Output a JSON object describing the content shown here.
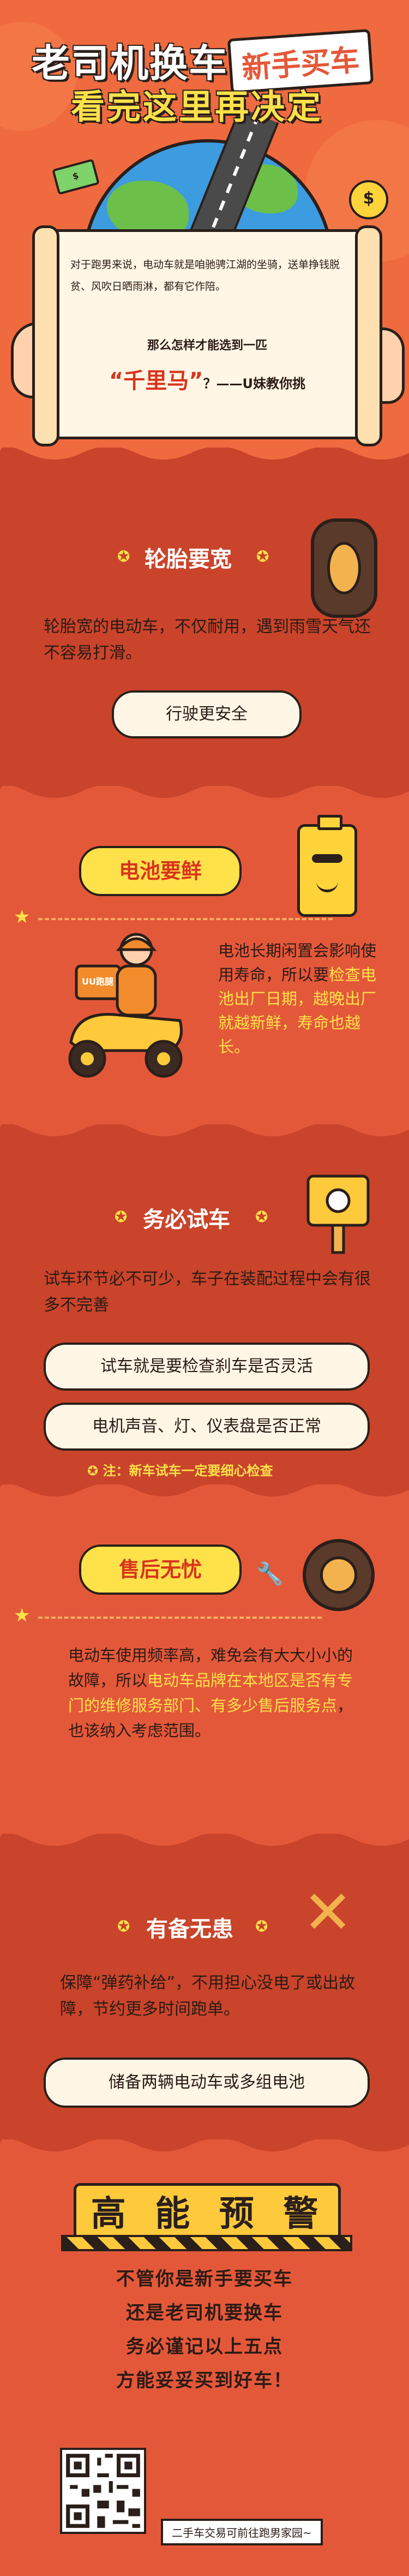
{
  "header": {
    "title_line1": "老司机换车",
    "title_badge": "新手买车",
    "title_line2": "看完这里再决定",
    "coin_symbol": "$",
    "bill_symbol": "$",
    "intro": "对于跑男来说，电动车就是咱驰骋江湖的坐骑，送单挣钱脱贫、风吹日晒雨淋，都有它作陪。",
    "question_line1": "那么怎样才能选到一匹",
    "question_highlight": "“千里马”",
    "question_tail": "？——U妹教你挑"
  },
  "sections": {
    "tire": {
      "title": "轮胎要宽",
      "para": "轮胎宽的电动车，不仅耐用，遇到雨雪天气还不容易打滑。",
      "button": "行驶更安全"
    },
    "battery": {
      "title": "电池要鲜",
      "para_plain1": "电池长期闲置会影响使用寿命，所以要",
      "para_hl": "检查电池出厂日期，越晚出厂就越新鲜，寿命也越长。",
      "scooter_logo": "UU跑腿"
    },
    "test": {
      "title": "务必试车",
      "para": "试车环节必不可少，车子在装配过程中会有很多不完善",
      "button1": "试车就是要检查刹车是否灵活",
      "button2": "电机声音、灯、仪表盘是否正常",
      "note": "注：新车试车一定要细心检查"
    },
    "service": {
      "title": "售后无忧",
      "para_plain1": "电动车使用频率高，难免会有大大小小的故障，所以",
      "para_hl": "电动车品牌在本地区是否有专门的维修服务部门、有多少售后服务点",
      "para_plain2": "，也该纳入考虑范围。"
    },
    "backup": {
      "title": "有备无患",
      "para": "保障“弹药补给”，不用担心没电了或出故障，节约更多时间跑单。",
      "button": "储备两辆电动车或多组电池"
    }
  },
  "warning": {
    "title_chars": [
      "高",
      "能",
      "预",
      "警"
    ],
    "lines": [
      "不管你是新手要买车",
      "还是老司机要换车",
      "务必谨记以上五点",
      "方能妥妥买到好车！"
    ],
    "qr_caption": "二手车交易可前往跑男家园~"
  },
  "colors": {
    "bg": "#e4583a",
    "header": "#f06a3f",
    "accent_yellow": "#ffe14a",
    "cream": "#fff6e6",
    "outline": "#2a1f1a"
  },
  "icons": [
    "tire-icon",
    "battery-mascot-icon",
    "scooter-rider-icon",
    "traffic-sign-icon",
    "wheel-icon",
    "cross-wrench-icon",
    "star-icon",
    "qr-code-icon"
  ]
}
